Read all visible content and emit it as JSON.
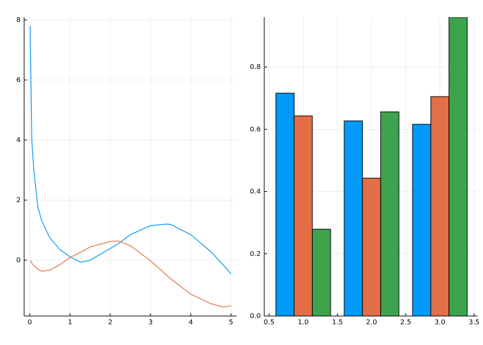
{
  "chart_data": [
    {
      "type": "line",
      "x": [
        0.01,
        0.05,
        0.1,
        0.2,
        0.3,
        0.5,
        0.75,
        1,
        1.27,
        1.5,
        2,
        2.2,
        2.5,
        3,
        3.4,
        3.5,
        4,
        4.5,
        4.8,
        5
      ],
      "series": [
        {
          "color": "#009af9",
          "values": [
            7.8,
            4.0,
            3.0,
            1.77,
            1.3,
            0.74,
            0.35,
            0.11,
            -0.07,
            0.0,
            0.39,
            0.55,
            0.85,
            1.15,
            1.2,
            1.19,
            0.85,
            0.28,
            -0.15,
            -0.46
          ]
        },
        {
          "color": "#e26f46",
          "values": [
            -0.01,
            -0.1,
            -0.18,
            -0.3,
            -0.37,
            -0.33,
            -0.15,
            0.09,
            0.27,
            0.44,
            0.62,
            0.64,
            0.48,
            -0.02,
            -0.5,
            -0.62,
            -1.13,
            -1.45,
            -1.56,
            -1.52
          ]
        }
      ],
      "xlim": [
        -0.14,
        5.14
      ],
      "xticks": [
        0,
        1,
        2,
        3,
        4,
        5
      ],
      "ylim": [
        -1.86,
        8.09
      ],
      "yticks": [
        0,
        2,
        4,
        6,
        8
      ],
      "grid": true
    },
    {
      "type": "bar",
      "x": [
        1,
        2,
        3
      ],
      "series": [
        {
          "color": "#009af9",
          "values": [
            0.716,
            0.627,
            0.616
          ]
        },
        {
          "color": "#e26f46",
          "values": [
            0.643,
            0.443,
            0.705
          ]
        },
        {
          "color": "#3da44d",
          "values": [
            0.279,
            0.656,
            0.96
          ]
        }
      ],
      "xlim": [
        0.43,
        3.55
      ],
      "xticks": [
        {
          "value": 0.5,
          "label": "0.5"
        },
        {
          "value": 1,
          "label": "1.0"
        },
        {
          "value": 1.5,
          "label": "1.5"
        },
        {
          "value": 2,
          "label": "2.0"
        },
        {
          "value": 2.5,
          "label": "2.5"
        },
        {
          "value": 3,
          "label": "3.0"
        },
        {
          "value": 3.5,
          "label": "3.5"
        }
      ],
      "ylim": [
        0,
        0.96
      ],
      "yticks": [
        {
          "value": 0,
          "label": "0.0"
        },
        0.2,
        0.4,
        0.6,
        0.8
      ],
      "grid": true
    }
  ]
}
